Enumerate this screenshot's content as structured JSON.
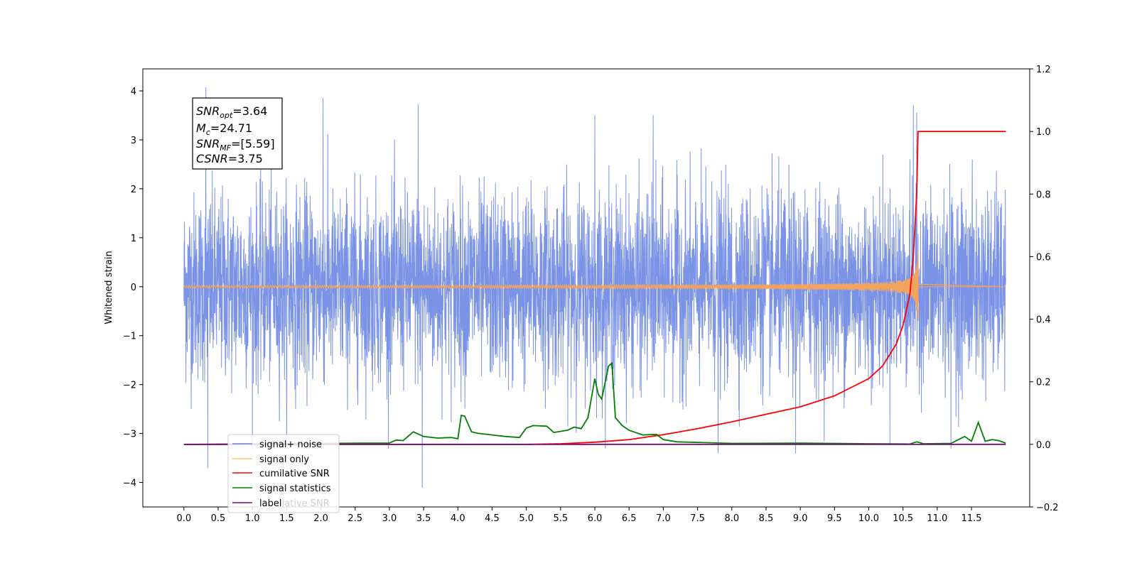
{
  "chart_data": {
    "type": "line",
    "ylabel": "Whitened strain",
    "xlim": [
      -0.6,
      12.35
    ],
    "ylim_left": [
      -4.5,
      4.45
    ],
    "ylim_right": [
      -0.2,
      1.2
    ],
    "x_ticks": [
      0.0,
      0.5,
      1.0,
      1.5,
      2.0,
      2.5,
      3.0,
      3.5,
      4.0,
      4.5,
      5.0,
      5.5,
      6.0,
      6.5,
      7.0,
      7.5,
      8.0,
      8.5,
      9.0,
      9.5,
      10.0,
      10.5,
      11.0,
      11.5
    ],
    "x_tick_labels": [
      "0.0",
      "0.5",
      "1.0",
      "1.5",
      "2.0",
      "2.5",
      "3.0",
      "3.5",
      "4.0",
      "4.5",
      "5.0",
      "5.5",
      "6.0",
      "6.5",
      "7.0",
      "7.5",
      "8.0",
      "8.5",
      "9.0",
      "9.5",
      "10.0",
      "10.5",
      "11.0",
      "11.5"
    ],
    "y_left_ticks": [
      4,
      3,
      2,
      1,
      0,
      -1,
      -2,
      -3,
      -4
    ],
    "y_left_tick_labels": [
      "4",
      "3",
      "2",
      "1",
      "0",
      "−1",
      "−2",
      "−3",
      "−4"
    ],
    "y_right_ticks": [
      1.2,
      1.0,
      0.8,
      0.6,
      0.4,
      0.2,
      0.0,
      -0.2
    ],
    "y_right_tick_labels": [
      "1.2",
      "1.0",
      "0.8",
      "0.6",
      "0.4",
      "0.2",
      "0.0",
      "−0.2"
    ],
    "annotation": {
      "lines": [
        {
          "main": "SNR",
          "sub": "opt",
          "rest": "=3.64"
        },
        {
          "main": "M",
          "sub": "c",
          "rest": "=24.71"
        },
        {
          "main": "SNR",
          "sub": "MF",
          "rest": "=[5.59]"
        },
        {
          "main": "CSNR",
          "sub": "",
          "rest": "=3.75"
        }
      ]
    },
    "legend": {
      "placement": "lower-left",
      "entries": [
        "signal+ noise",
        "signal only",
        "cumilative SNR",
        "signal statistics",
        "label"
      ],
      "hidden_text": "cumilative SNR"
    },
    "series": [
      {
        "name": "signal+ noise",
        "axis": "left",
        "color": "#7b93e6",
        "x_range": [
          0.0,
          12.0
        ],
        "spread_sigma": 0.95,
        "envelope_max": [
          -1.8,
          2.2
        ],
        "spikes": [
          [
            0.32,
            4.07
          ],
          [
            0.35,
            -3.7
          ],
          [
            2.03,
            3.85
          ],
          [
            3.48,
            -4.1
          ],
          [
            3.42,
            3.72
          ],
          [
            6.0,
            3.5
          ],
          [
            6.85,
            3.5
          ],
          [
            7.8,
            -3.4
          ],
          [
            8.93,
            -3.4
          ],
          [
            10.65,
            3.7
          ],
          [
            10.7,
            3.55
          ],
          [
            11.2,
            -3.3
          ]
        ]
      },
      {
        "name": "signal only",
        "axis": "left",
        "color": "#f2a35e",
        "x_range": [
          0.0,
          12.0
        ],
        "merger_time": 10.72,
        "peak_amplitude": 0.72
      },
      {
        "name": "cumilative SNR",
        "axis": "right",
        "color": "#ff0000",
        "x": [
          0.0,
          5.0,
          5.5,
          6.0,
          6.5,
          7.0,
          7.5,
          8.0,
          8.5,
          9.0,
          9.5,
          10.0,
          10.2,
          10.4,
          10.5,
          10.6,
          10.65,
          10.7,
          10.72,
          11.0,
          12.0
        ],
        "values": [
          0.0,
          0.0,
          0.002,
          0.007,
          0.015,
          0.031,
          0.05,
          0.072,
          0.096,
          0.12,
          0.155,
          0.21,
          0.25,
          0.32,
          0.38,
          0.48,
          0.6,
          0.8,
          1.0,
          1.0,
          1.0
        ]
      },
      {
        "name": "signal statistics",
        "axis": "right",
        "color": "#008000",
        "x": [
          0.0,
          2.7,
          3.0,
          3.1,
          3.2,
          3.35,
          3.5,
          3.7,
          3.9,
          4.0,
          4.05,
          4.1,
          4.2,
          4.3,
          4.5,
          4.7,
          4.9,
          5.0,
          5.1,
          5.3,
          5.4,
          5.6,
          5.7,
          5.8,
          5.9,
          6.0,
          6.05,
          6.1,
          6.2,
          6.25,
          6.3,
          6.4,
          6.5,
          6.7,
          6.9,
          7.0,
          7.2,
          8.0,
          9.0,
          10.0,
          10.6,
          10.7,
          10.8,
          11.2,
          11.4,
          11.5,
          11.6,
          11.7,
          11.8,
          11.9,
          12.0
        ],
        "values": [
          0.0,
          0.004,
          0.004,
          0.014,
          0.012,
          0.04,
          0.025,
          0.02,
          0.022,
          0.018,
          0.093,
          0.09,
          0.04,
          0.035,
          0.03,
          0.025,
          0.022,
          0.052,
          0.06,
          0.058,
          0.038,
          0.045,
          0.055,
          0.05,
          0.085,
          0.21,
          0.16,
          0.145,
          0.25,
          0.26,
          0.085,
          0.06,
          0.045,
          0.03,
          0.032,
          0.015,
          0.008,
          0.003,
          0.004,
          0.002,
          0.001,
          0.008,
          0.002,
          0.003,
          0.025,
          0.01,
          0.07,
          0.01,
          0.015,
          0.012,
          0.004
        ]
      },
      {
        "name": "label",
        "axis": "right",
        "color": "#800080",
        "x": [
          0.0,
          12.0
        ],
        "values": [
          0.0,
          0.0
        ]
      }
    ],
    "colors": {
      "noise": "#7b93e6",
      "signal": "#f2a35e",
      "csnr": "#ff0000",
      "stats": "#008000",
      "label": "#800080",
      "legend_signal_only": "#ffbf66",
      "legend_noise": "#6a82dc"
    }
  }
}
